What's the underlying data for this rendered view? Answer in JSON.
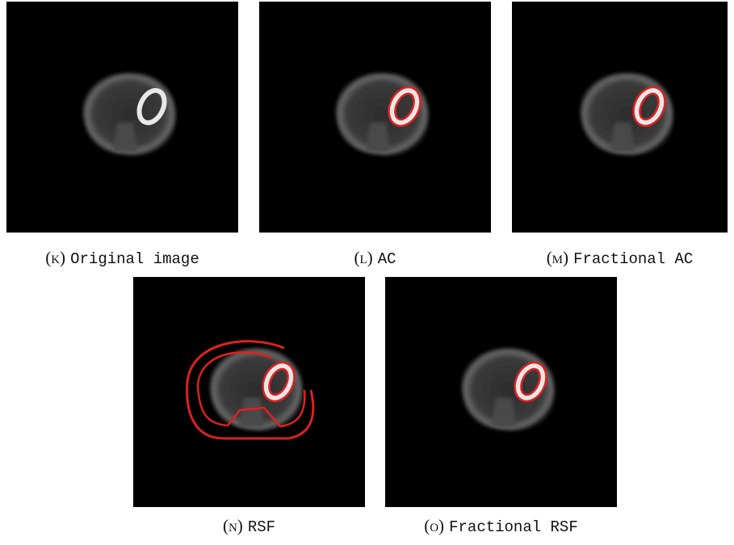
{
  "figure": {
    "panels": [
      {
        "label": "(k)",
        "caption": "Original image"
      },
      {
        "label": "(l)",
        "caption": "AC"
      },
      {
        "label": "(m)",
        "caption": "Fractional AC"
      },
      {
        "label": "(n)",
        "caption": "RSF"
      },
      {
        "label": "(o)",
        "caption": "Fractional RSF"
      }
    ]
  }
}
